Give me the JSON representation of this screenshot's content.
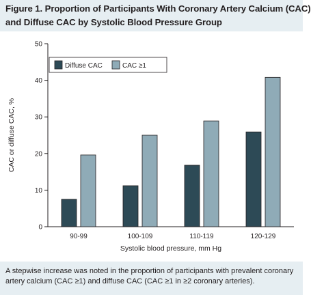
{
  "figure": {
    "title_line1": "Figure 1. Proportion of Participants With Coronary Artery Calcium (CAC)",
    "title_line2": "and Diffuse CAC by Systolic Blood Pressure Group",
    "caption": "A stepwise increase was noted in the proportion of participants with prevalent coronary artery calcium (CAC ≥1) and diffuse CAC (CAC ≥1 in ≥2 coronary arteries)."
  },
  "colors": {
    "header_bg": "#e6eef2",
    "caption_bg": "#e6eef2",
    "diffuse_cac": "#2d4a56",
    "cac_ge1": "#8fabb7"
  },
  "chart_data": {
    "type": "bar",
    "categories": [
      "90-99",
      "100-109",
      "110-119",
      "120-129"
    ],
    "series": [
      {
        "name": "Diffuse CAC",
        "values": [
          7.5,
          11.2,
          16.8,
          25.9
        ]
      },
      {
        "name": "CAC ≥1",
        "values": [
          19.6,
          25.0,
          28.9,
          40.8
        ]
      }
    ],
    "xlabel": "Systolic blood pressure, mm Hg",
    "ylabel": "CAC or diffuse CAC, %",
    "ylim": [
      0,
      50
    ],
    "yticks": [
      0,
      10,
      20,
      30,
      40,
      50
    ],
    "legend_position": "top-left",
    "grid": false
  }
}
